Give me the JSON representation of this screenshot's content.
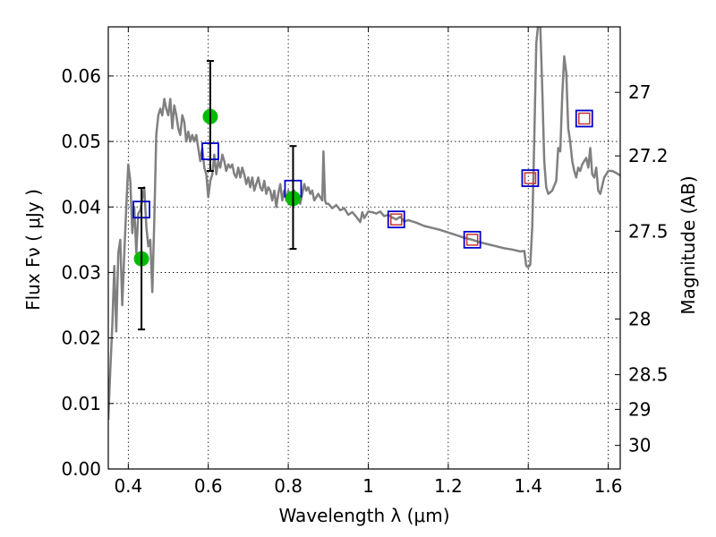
{
  "chart_data": {
    "type": "scatter",
    "xlabel": "Wavelength  λ (μm)",
    "ylabel": "Flux  Fν  ( μJy )",
    "ylabel_right": "Magnitude (AB)",
    "xlim": [
      0.35,
      1.63
    ],
    "ylim": [
      0.0,
      0.0675
    ],
    "grid": true,
    "x_ticks": [
      0.4,
      0.6,
      0.8,
      1.0,
      1.2,
      1.4,
      1.6
    ],
    "x_tick_labels": [
      "0.4",
      "0.6",
      "0.8",
      "1",
      "1.2",
      "1.4",
      "1.6"
    ],
    "y_ticks": [
      0.0,
      0.01,
      0.02,
      0.03,
      0.04,
      0.05,
      0.06
    ],
    "y_tick_labels": [
      "0.00",
      "0.01",
      "0.02",
      "0.03",
      "0.04",
      "0.05",
      "0.06"
    ],
    "right_ticks": [
      {
        "label": "27",
        "flux": 0.0575
      },
      {
        "label": "27.2",
        "flux": 0.0478
      },
      {
        "label": "27.5",
        "flux": 0.0363
      },
      {
        "label": "28",
        "flux": 0.0229
      },
      {
        "label": "28.5",
        "flux": 0.0144
      },
      {
        "label": "29",
        "flux": 0.0091
      },
      {
        "label": "30",
        "flux": 0.0036
      }
    ],
    "series": [
      {
        "style": "line",
        "color": "#808080",
        "points": [
          [
            0.35,
            0.0075
          ],
          [
            0.355,
            0.015
          ],
          [
            0.36,
            0.022
          ],
          [
            0.365,
            0.031
          ],
          [
            0.37,
            0.021
          ],
          [
            0.375,
            0.033
          ],
          [
            0.38,
            0.035
          ],
          [
            0.385,
            0.025
          ],
          [
            0.39,
            0.033
          ],
          [
            0.395,
            0.04
          ],
          [
            0.4,
            0.0465
          ],
          [
            0.405,
            0.044
          ],
          [
            0.41,
            0.036
          ],
          [
            0.415,
            0.04
          ],
          [
            0.42,
            0.033
          ],
          [
            0.425,
            0.039
          ],
          [
            0.43,
            0.0395
          ],
          [
            0.44,
            0.043
          ],
          [
            0.445,
            0.037
          ],
          [
            0.45,
            0.034
          ],
          [
            0.455,
            0.035
          ],
          [
            0.46,
            0.027
          ],
          [
            0.465,
            0.038
          ],
          [
            0.47,
            0.051
          ],
          [
            0.475,
            0.054
          ],
          [
            0.48,
            0.055
          ],
          [
            0.485,
            0.054
          ],
          [
            0.49,
            0.0565
          ],
          [
            0.495,
            0.055
          ],
          [
            0.5,
            0.054
          ],
          [
            0.505,
            0.0565
          ],
          [
            0.51,
            0.052
          ],
          [
            0.515,
            0.0555
          ],
          [
            0.52,
            0.054
          ],
          [
            0.525,
            0.052
          ],
          [
            0.53,
            0.051
          ],
          [
            0.535,
            0.054
          ],
          [
            0.54,
            0.053
          ],
          [
            0.545,
            0.05
          ],
          [
            0.55,
            0.0515
          ],
          [
            0.555,
            0.05
          ],
          [
            0.56,
            0.051
          ],
          [
            0.565,
            0.05
          ],
          [
            0.57,
            0.051
          ],
          [
            0.575,
            0.049
          ],
          [
            0.58,
            0.047
          ],
          [
            0.585,
            0.049
          ],
          [
            0.59,
            0.046
          ],
          [
            0.595,
            0.045
          ],
          [
            0.6,
            0.0415
          ],
          [
            0.605,
            0.044
          ],
          [
            0.61,
            0.045
          ],
          [
            0.615,
            0.048
          ],
          [
            0.62,
            0.045
          ],
          [
            0.625,
            0.047
          ],
          [
            0.63,
            0.046
          ],
          [
            0.635,
            0.048
          ],
          [
            0.64,
            0.047
          ],
          [
            0.645,
            0.0455
          ],
          [
            0.65,
            0.0465
          ],
          [
            0.655,
            0.046
          ],
          [
            0.66,
            0.0465
          ],
          [
            0.665,
            0.045
          ],
          [
            0.67,
            0.0445
          ],
          [
            0.675,
            0.046
          ],
          [
            0.68,
            0.0445
          ],
          [
            0.685,
            0.046
          ],
          [
            0.69,
            0.045
          ],
          [
            0.695,
            0.0435
          ],
          [
            0.7,
            0.0445
          ],
          [
            0.705,
            0.043
          ],
          [
            0.71,
            0.0445
          ],
          [
            0.715,
            0.0425
          ],
          [
            0.72,
            0.0435
          ],
          [
            0.725,
            0.0445
          ],
          [
            0.73,
            0.043
          ],
          [
            0.735,
            0.0425
          ],
          [
            0.74,
            0.044
          ],
          [
            0.745,
            0.042
          ],
          [
            0.75,
            0.043
          ],
          [
            0.755,
            0.0425
          ],
          [
            0.76,
            0.041
          ],
          [
            0.765,
            0.0425
          ],
          [
            0.77,
            0.04
          ],
          [
            0.775,
            0.042
          ],
          [
            0.78,
            0.0435
          ],
          [
            0.785,
            0.041
          ],
          [
            0.79,
            0.0425
          ],
          [
            0.795,
            0.041
          ],
          [
            0.8,
            0.0425
          ],
          [
            0.805,
            0.041
          ],
          [
            0.81,
            0.0415
          ],
          [
            0.815,
            0.0425
          ],
          [
            0.82,
            0.041
          ],
          [
            0.825,
            0.0415
          ],
          [
            0.83,
            0.0405
          ],
          [
            0.835,
            0.042
          ],
          [
            0.84,
            0.0435
          ],
          [
            0.845,
            0.0425
          ],
          [
            0.85,
            0.043
          ],
          [
            0.855,
            0.042
          ],
          [
            0.86,
            0.0425
          ],
          [
            0.865,
            0.041
          ],
          [
            0.87,
            0.0415
          ],
          [
            0.875,
            0.042
          ],
          [
            0.88,
            0.0415
          ],
          [
            0.885,
            0.041
          ],
          [
            0.888,
            0.0485
          ],
          [
            0.892,
            0.041
          ],
          [
            0.895,
            0.0405
          ],
          [
            0.9,
            0.0405
          ],
          [
            0.91,
            0.0398
          ],
          [
            0.92,
            0.0403
          ],
          [
            0.93,
            0.0395
          ],
          [
            0.94,
            0.0398
          ],
          [
            0.95,
            0.0388
          ],
          [
            0.96,
            0.0392
          ],
          [
            0.97,
            0.0385
          ],
          [
            0.98,
            0.0377
          ],
          [
            0.985,
            0.0392
          ],
          [
            0.99,
            0.0383
          ],
          [
            1.0,
            0.0393
          ],
          [
            1.01,
            0.0392
          ],
          [
            1.02,
            0.039
          ],
          [
            1.03,
            0.0393
          ],
          [
            1.04,
            0.0386
          ],
          [
            1.05,
            0.0388
          ],
          [
            1.06,
            0.0384
          ],
          [
            1.07,
            0.0381
          ],
          [
            1.08,
            0.0385
          ],
          [
            1.09,
            0.0378
          ],
          [
            1.1,
            0.038
          ],
          [
            1.12,
            0.0376
          ],
          [
            1.14,
            0.0371
          ],
          [
            1.16,
            0.0368
          ],
          [
            1.18,
            0.0365
          ],
          [
            1.2,
            0.0361
          ],
          [
            1.22,
            0.0357
          ],
          [
            1.24,
            0.0353
          ],
          [
            1.26,
            0.035
          ],
          [
            1.28,
            0.0346
          ],
          [
            1.3,
            0.0343
          ],
          [
            1.32,
            0.034
          ],
          [
            1.34,
            0.0337
          ],
          [
            1.36,
            0.0335
          ],
          [
            1.38,
            0.0332
          ],
          [
            1.39,
            0.0333
          ],
          [
            1.395,
            0.031
          ],
          [
            1.4,
            0.0308
          ],
          [
            1.405,
            0.0312
          ],
          [
            1.41,
            0.037
          ],
          [
            1.415,
            0.05
          ],
          [
            1.42,
            0.065
          ],
          [
            1.425,
            0.068
          ],
          [
            1.43,
            0.068
          ],
          [
            1.435,
            0.058
          ],
          [
            1.44,
            0.047
          ],
          [
            1.445,
            0.043
          ],
          [
            1.45,
            0.042
          ],
          [
            1.46,
            0.0425
          ],
          [
            1.47,
            0.044
          ],
          [
            1.475,
            0.049
          ],
          [
            1.48,
            0.0485
          ],
          [
            1.485,
            0.057
          ],
          [
            1.49,
            0.063
          ],
          [
            1.495,
            0.0605
          ],
          [
            1.5,
            0.052
          ],
          [
            1.505,
            0.05
          ],
          [
            1.51,
            0.047
          ],
          [
            1.515,
            0.0455
          ],
          [
            1.52,
            0.0445
          ],
          [
            1.525,
            0.046
          ],
          [
            1.53,
            0.0455
          ],
          [
            1.535,
            0.0465
          ],
          [
            1.54,
            0.047
          ],
          [
            1.545,
            0.0475
          ],
          [
            1.55,
            0.046
          ],
          [
            1.555,
            0.049
          ],
          [
            1.56,
            0.045
          ],
          [
            1.565,
            0.0445
          ],
          [
            1.57,
            0.046
          ],
          [
            1.575,
            0.0425
          ],
          [
            1.58,
            0.042
          ],
          [
            1.59,
            0.0445
          ],
          [
            1.6,
            0.0455
          ],
          [
            1.61,
            0.0455
          ],
          [
            1.62,
            0.0452
          ],
          [
            1.63,
            0.0448
          ]
        ]
      },
      {
        "style": "open-square",
        "color": "#0000cc",
        "points": [
          [
            0.433,
            0.0396
          ],
          [
            0.605,
            0.0485
          ],
          [
            0.812,
            0.0428
          ],
          [
            1.07,
            0.0381
          ],
          [
            1.26,
            0.035
          ],
          [
            1.405,
            0.0444
          ],
          [
            1.54,
            0.0535
          ]
        ]
      },
      {
        "style": "open-square-small",
        "color": "#cc3333",
        "points": [
          [
            1.07,
            0.0381
          ],
          [
            1.26,
            0.035
          ],
          [
            1.405,
            0.0444
          ],
          [
            1.54,
            0.0535
          ]
        ]
      },
      {
        "style": "filled-circle",
        "color": "#00bb00",
        "points": [
          [
            0.433,
            0.0321
          ],
          [
            0.605,
            0.0538
          ],
          [
            0.812,
            0.0413
          ]
        ]
      },
      {
        "style": "errorbar",
        "color": "#000000",
        "points": [
          [
            0.433,
            0.0213,
            0.0429
          ],
          [
            0.605,
            0.0455,
            0.0623
          ],
          [
            0.812,
            0.0336,
            0.0493
          ]
        ]
      }
    ]
  }
}
